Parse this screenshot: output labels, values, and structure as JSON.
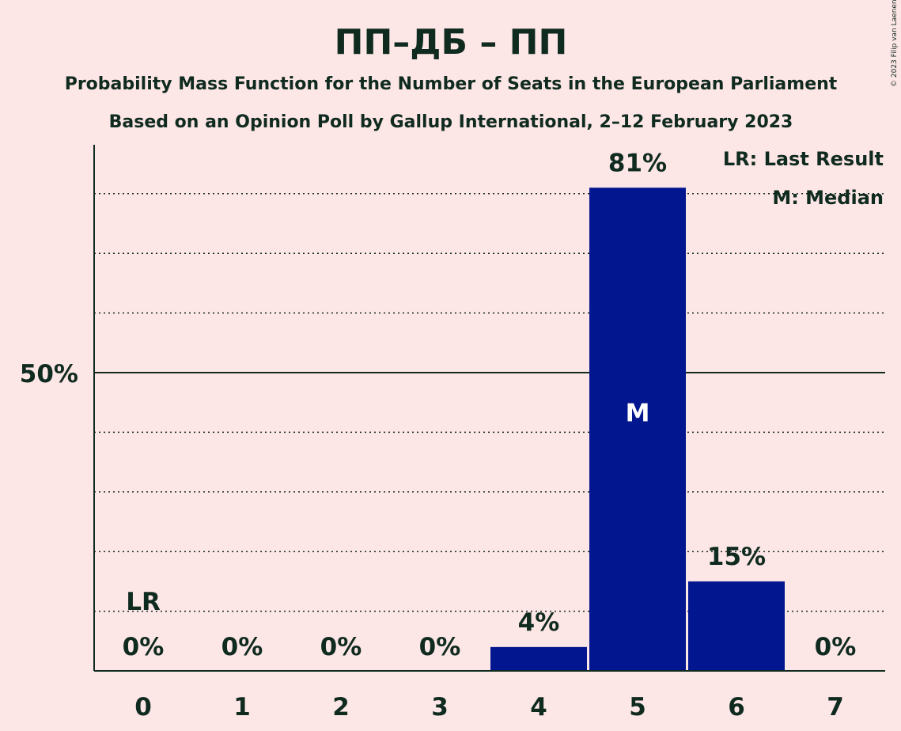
{
  "chart_data": {
    "type": "bar",
    "title": "ПП–ДБ – ПП",
    "subtitle_1": "Probability Mass Function for the Number of Seats in the European Parliament",
    "subtitle_2": "Based on an Opinion Poll by Gallup International, 2–12 February 2023",
    "categories": [
      "0",
      "1",
      "2",
      "3",
      "4",
      "5",
      "6",
      "7"
    ],
    "values": [
      0,
      0,
      0,
      0,
      4,
      81,
      15,
      0
    ],
    "value_labels": [
      "0%",
      "0%",
      "0%",
      "0%",
      "4%",
      "81%",
      "15%",
      "0%"
    ],
    "ylim": [
      0,
      88
    ],
    "ytick_label": "50%",
    "ytick_value": 50,
    "grid_values": [
      10,
      20,
      30,
      40,
      60,
      70,
      80
    ],
    "last_result_index": 0,
    "last_result_label": "LR",
    "median_index": 5,
    "median_label": "M",
    "legend": [
      "LR: Last Result",
      "M: Median"
    ],
    "legend_position": "top-right",
    "bar_color": "#02168f",
    "background": "#fde6e6",
    "credit": "© 2023 Filip van Laenen"
  }
}
